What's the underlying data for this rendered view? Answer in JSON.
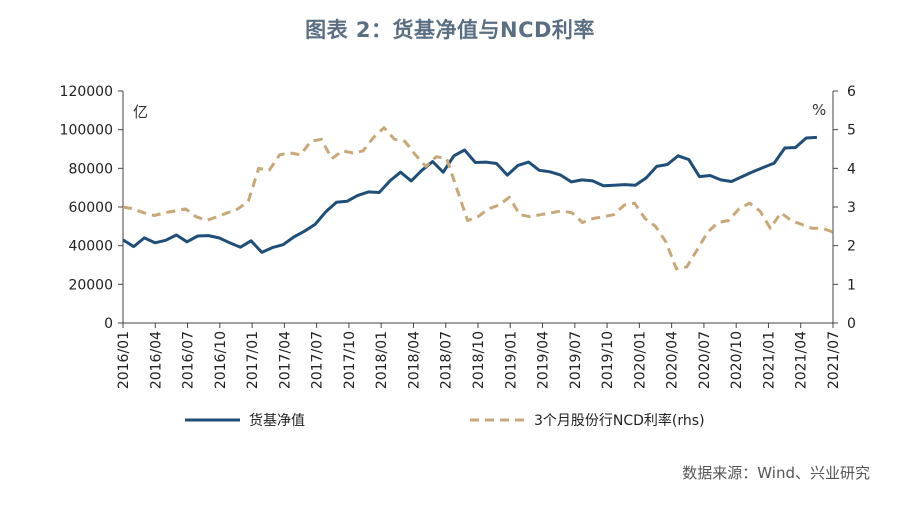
{
  "title": "图表 2：货基净值与NCD利率",
  "source": "数据来源：Wind、兴业研究",
  "chart_data": {
    "type": "line",
    "left_axis_unit": "亿",
    "right_axis_unit": "%",
    "ylim_left": [
      0,
      120000
    ],
    "ylim_right": [
      0,
      6
    ],
    "yticks_left": [
      "0",
      "20000",
      "40000",
      "60000",
      "80000",
      "100000",
      "120000"
    ],
    "yticks_right": [
      "0",
      "1",
      "2",
      "3",
      "4",
      "5",
      "6"
    ],
    "xtick_labels": [
      "2016/01",
      "2016/04",
      "2016/07",
      "2016/10",
      "2017/01",
      "2017/04",
      "2017/07",
      "2017/10",
      "2018/01",
      "2018/04",
      "2018/07",
      "2018/10",
      "2019/01",
      "2019/04",
      "2019/07",
      "2019/10",
      "2020/01",
      "2020/04",
      "2020/07",
      "2020/10",
      "2021/01",
      "2021/04",
      "2021/07"
    ],
    "x_start": "2016/01",
    "x_end": "2021/07",
    "legend": "bottom",
    "colors": {
      "fund": "#1f4e79",
      "ncd": "#c8a878",
      "axis": "#444444"
    },
    "series": [
      {
        "name": "货基净值",
        "axis": "left",
        "style": "solid",
        "values": [
          43000,
          39500,
          44000,
          41500,
          42800,
          45500,
          42000,
          45000,
          45200,
          44000,
          41500,
          39200,
          42500,
          36500,
          39000,
          40500,
          44500,
          47500,
          51000,
          57500,
          62500,
          63000,
          66000,
          67800,
          67500,
          73500,
          78000,
          73500,
          79000,
          83500,
          78000,
          86500,
          89500,
          83000,
          83200,
          82500,
          76500,
          81500,
          83200,
          79000,
          78200,
          76500,
          73000,
          74000,
          73500,
          71000,
          71300,
          71600,
          71300,
          75000,
          81000,
          82000,
          86500,
          84500,
          75700,
          76300,
          74000,
          73200,
          75700,
          78200,
          80500,
          82700,
          90500,
          90800,
          95700,
          96000
        ]
      },
      {
        "name": "3个月股份行NCD利率(rhs)",
        "axis": "right",
        "style": "dashed",
        "values": [
          3.0,
          2.95,
          2.85,
          2.78,
          2.85,
          2.9,
          2.95,
          2.75,
          2.65,
          2.75,
          2.85,
          2.95,
          3.15,
          4.0,
          3.95,
          4.35,
          4.4,
          4.35,
          4.7,
          4.75,
          4.25,
          4.45,
          4.4,
          4.45,
          4.8,
          5.05,
          4.75,
          4.7,
          4.35,
          4.05,
          4.3,
          4.25,
          3.45,
          2.65,
          2.75,
          2.95,
          3.05,
          3.25,
          2.8,
          2.75,
          2.8,
          2.85,
          2.9,
          2.85,
          2.6,
          2.7,
          2.75,
          2.8,
          3.05,
          3.1,
          2.7,
          2.5,
          2.1,
          1.4,
          1.45,
          1.9,
          2.35,
          2.6,
          2.65,
          2.95,
          3.1,
          2.9,
          2.45,
          2.85,
          2.65,
          2.55,
          2.45,
          2.45,
          2.35
        ]
      }
    ]
  }
}
